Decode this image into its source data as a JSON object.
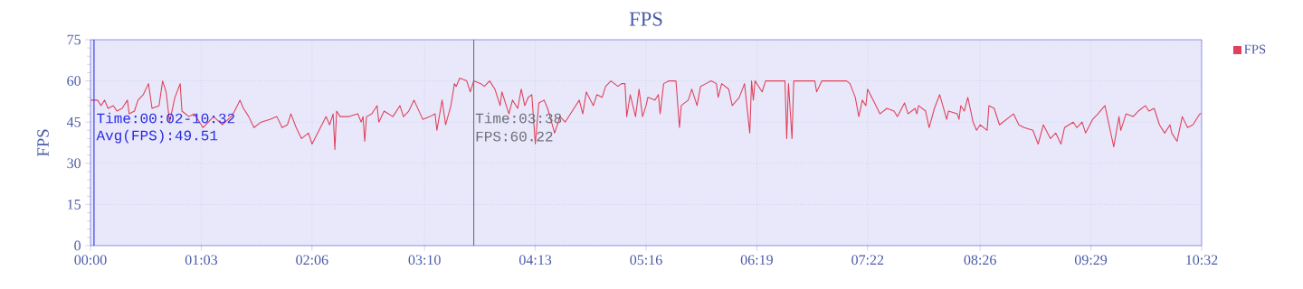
{
  "chart_data": {
    "type": "line",
    "title": "FPS",
    "ylabel": "FPS",
    "xlim": [
      0,
      632
    ],
    "ylim": [
      0,
      75
    ],
    "xticks": [
      {
        "value": 0,
        "label": "00:00"
      },
      {
        "value": 63,
        "label": "01:03"
      },
      {
        "value": 126,
        "label": "02:06"
      },
      {
        "value": 190,
        "label": "03:10"
      },
      {
        "value": 253,
        "label": "04:13"
      },
      {
        "value": 316,
        "label": "05:16"
      },
      {
        "value": 379,
        "label": "06:19"
      },
      {
        "value": 442,
        "label": "07:22"
      },
      {
        "value": 506,
        "label": "08:26"
      },
      {
        "value": 569,
        "label": "09:29"
      },
      {
        "value": 632,
        "label": "10:32"
      }
    ],
    "yticks": [
      0,
      15,
      30,
      45,
      60,
      75
    ],
    "grid": true,
    "legend": "top right",
    "line_style": "solid",
    "annotations": [
      "Time:00:02-10:32",
      "Avg(FPS):49.51",
      "Time:03:38",
      "FPS:60.22"
    ],
    "ref_lines": [
      {
        "axis": "x",
        "value": 2,
        "color": "#2a2ae6"
      },
      {
        "axis": "x",
        "value": 218,
        "color": "#6a6a80"
      }
    ],
    "series": [
      {
        "name": "FPS",
        "color": "#e0405a",
        "x": [
          0,
          4,
          6,
          8,
          10,
          13,
          15,
          18,
          21,
          22,
          25,
          27,
          30,
          33,
          35,
          39,
          41,
          43,
          45,
          48,
          51,
          52,
          56,
          59,
          64,
          70,
          75,
          80,
          82,
          85,
          87,
          90,
          93,
          97,
          102,
          106,
          109,
          112,
          114,
          117,
          120,
          124,
          126,
          130,
          134,
          136,
          138,
          139,
          140,
          142,
          147,
          152,
          154,
          155,
          156,
          157,
          160,
          163,
          164,
          167,
          172,
          176,
          178,
          181,
          184,
          189,
          193,
          196,
          197,
          200,
          202,
          205,
          207,
          208,
          210,
          214,
          216,
          218,
          222,
          224,
          227,
          230,
          233,
          234,
          238,
          240,
          243,
          245,
          247,
          249,
          251,
          253,
          255,
          258,
          260,
          264,
          267,
          270,
          275,
          278,
          280,
          282,
          286,
          288,
          291,
          293,
          296,
          300,
          302,
          304,
          305,
          307,
          310,
          312,
          314,
          316,
          317,
          321,
          323,
          324,
          326,
          329,
          333,
          335,
          336,
          340,
          342,
          345,
          347,
          350,
          353,
          356,
          357,
          359,
          363,
          365,
          369,
          372,
          375,
          376,
          377,
          378,
          382,
          384,
          388,
          392,
          395,
          396,
          397,
          399,
          400,
          406,
          412,
          413,
          416,
          424,
          430,
          432,
          435,
          437,
          439,
          441,
          442,
          446,
          449,
          453,
          457,
          459,
          463,
          465,
          469,
          470,
          471,
          475,
          477,
          480,
          483,
          487,
          488,
          493,
          494,
          495,
          497,
          499,
          502,
          504,
          506,
          510,
          511,
          514,
          517,
          525,
          528,
          531,
          536,
          539,
          542,
          546,
          549,
          552,
          554,
          559,
          561,
          564,
          566,
          570,
          573,
          577,
          578,
          582,
          585,
          586,
          589,
          593,
          596,
          600,
          602,
          605,
          608,
          611,
          614,
          615,
          618,
          621,
          624,
          627,
          631,
          632
        ],
        "values": [
          53,
          53,
          51,
          53,
          50,
          51,
          49,
          50,
          53,
          48,
          49,
          53,
          55,
          59,
          50,
          51,
          60,
          56,
          45,
          54,
          59,
          49,
          47,
          48,
          43,
          47,
          44,
          47,
          49,
          53,
          50,
          47,
          43,
          45,
          46,
          47,
          43,
          44,
          48,
          43,
          39,
          41,
          37,
          42,
          47,
          44,
          48,
          35,
          49,
          47,
          47,
          48,
          45,
          47,
          38,
          47,
          48,
          51,
          45,
          49,
          47,
          51,
          47,
          49,
          53,
          46,
          47,
          48,
          42,
          53,
          44,
          51,
          59,
          58,
          61,
          60,
          56,
          60,
          59,
          58,
          60,
          57,
          51,
          56,
          48,
          53,
          50,
          57,
          51,
          54,
          55,
          37,
          52,
          53,
          50,
          41,
          47,
          45,
          50,
          53,
          48,
          56,
          51,
          55,
          54,
          58,
          60,
          58,
          59,
          59,
          47,
          55,
          47,
          57,
          47,
          51,
          54,
          53,
          55,
          48,
          59,
          60,
          60,
          43,
          51,
          53,
          57,
          51,
          58,
          59,
          60,
          59,
          54,
          59,
          57,
          51,
          54,
          59,
          41,
          60,
          53,
          60,
          56,
          60,
          60,
          60,
          60,
          39,
          59,
          39,
          60,
          60,
          60,
          56,
          60,
          60,
          60,
          59,
          54,
          47,
          53,
          51,
          57,
          52,
          48,
          50,
          49,
          47,
          52,
          48,
          50,
          48,
          51,
          49,
          43,
          50,
          55,
          46,
          49,
          48,
          46,
          51,
          49,
          54,
          45,
          42,
          44,
          42,
          51,
          50,
          44,
          48,
          44,
          43,
          42,
          37,
          44,
          39,
          41,
          37,
          43,
          45,
          43,
          45,
          41,
          46,
          48,
          51,
          48,
          36,
          47,
          42,
          48,
          47,
          49,
          51,
          49,
          50,
          44,
          41,
          44,
          41,
          38,
          47,
          43,
          44,
          48,
          48
        ]
      }
    ]
  }
}
